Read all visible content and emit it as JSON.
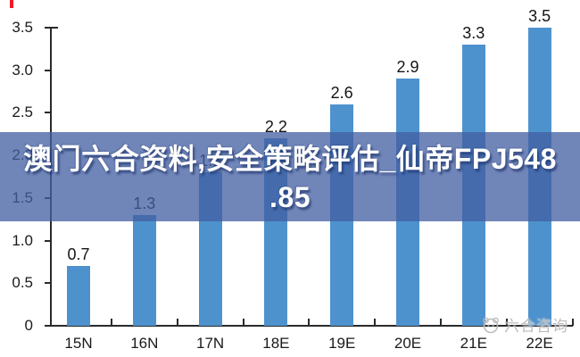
{
  "banner": {
    "line1": "澳门六合资料,安全策略评估_仙帝FPJ548",
    "line2": ".85",
    "overlay_color": "rgba(67,95,162,0.76)",
    "text_color": "#ffffff"
  },
  "watermark": {
    "label": "六合咨询",
    "color": "#bcbcbc"
  },
  "red_mark": {
    "color": "#ee1b23"
  },
  "chart_data": {
    "type": "bar",
    "title": "",
    "xlabel": "",
    "ylabel": "",
    "categories": [
      "15N",
      "16N",
      "17N",
      "18E",
      "19E",
      "20E",
      "21E",
      "22E"
    ],
    "values": [
      0.7,
      1.3,
      1.8,
      2.2,
      2.6,
      2.9,
      3.3,
      3.5
    ],
    "value_labels": [
      "0.7",
      "1.3",
      "1.8",
      "2.2",
      "2.6",
      "2.9",
      "3.3",
      "3.5"
    ],
    "y_axis": {
      "min": 0,
      "max": 3.5,
      "tick_step": 0.5,
      "tick_labels": [
        "0",
        "0.5",
        "1.0",
        "1.5",
        "2.0",
        "2.5",
        "3.0",
        "3.5"
      ]
    },
    "grid": false,
    "legend": false,
    "bar_color": "#4e92cd",
    "axis_color": "#2a2a2a",
    "label_color": "#1a1a1a"
  }
}
